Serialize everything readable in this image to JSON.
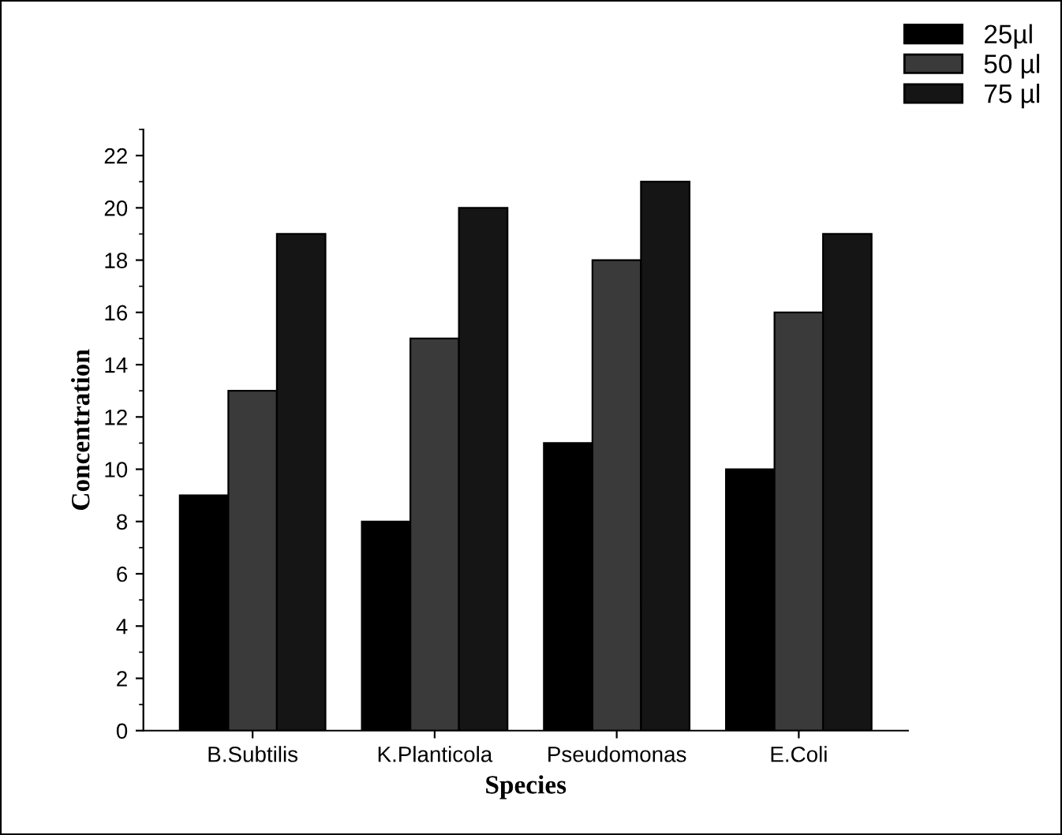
{
  "chart_data": {
    "type": "bar",
    "xlabel": "Species",
    "ylabel": "Concentration",
    "categories": [
      "B.Subtilis",
      "K.Planticola",
      "Pseudomonas",
      "E.Coli"
    ],
    "series": [
      {
        "name": "25µl",
        "color": "#000000",
        "values": [
          9,
          8,
          11,
          10
        ]
      },
      {
        "name": "50 µl",
        "color": "#3a3a3a",
        "values": [
          13,
          15,
          18,
          16
        ]
      },
      {
        "name": "75 µl",
        "color": "#151515",
        "values": [
          19,
          20,
          21,
          19
        ]
      }
    ],
    "ylim": [
      0,
      23
    ],
    "yticks": [
      0,
      2,
      4,
      6,
      8,
      10,
      12,
      14,
      16,
      18,
      20,
      22
    ],
    "grid": false,
    "legend": "top right"
  }
}
